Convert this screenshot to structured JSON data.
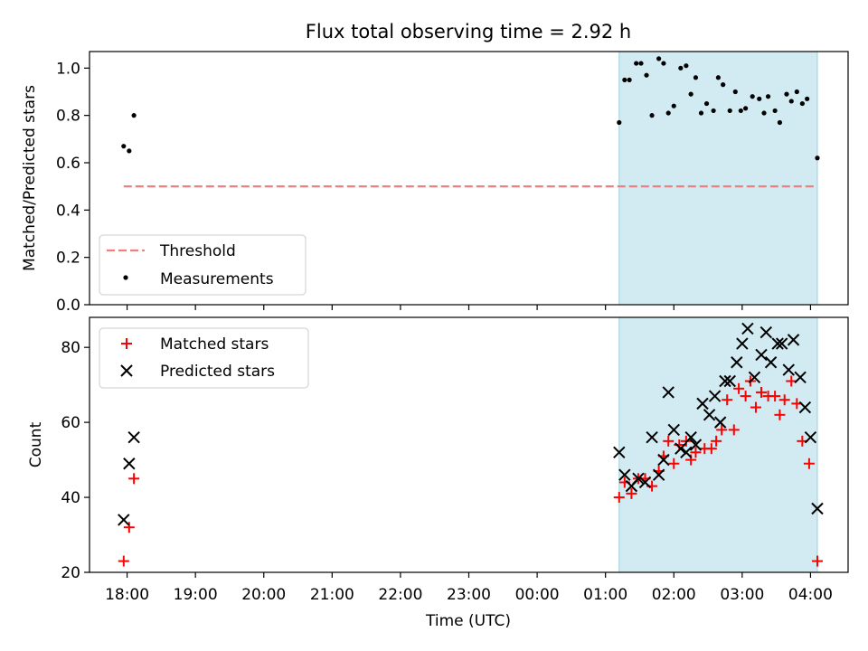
{
  "title": "Flux total observing time = 2.92 h",
  "xlabel": "Time (UTC)",
  "xtick_labels": [
    "18:00",
    "19:00",
    "20:00",
    "21:00",
    "22:00",
    "23:00",
    "00:00",
    "01:00",
    "02:00",
    "03:00",
    "04:00"
  ],
  "colors": {
    "threshold": "#f08080",
    "measurements": "#000000",
    "matched": "#ff0000",
    "predicted": "#000000",
    "shade": "#add8e6"
  },
  "chart_data": [
    {
      "type": "scatter",
      "ylabel": "Matched/Predicted stars",
      "ylim": [
        0,
        1.07
      ],
      "yticks": [
        "0.0",
        "0.2",
        "0.4",
        "0.6",
        "0.8",
        "1.0"
      ],
      "legend_position": "lower-left",
      "shaded_span": {
        "x": [
          7.2,
          10.1
        ],
        "color": "lightblue"
      },
      "threshold": {
        "name": "Threshold",
        "value": 0.5,
        "x": [
          -0.05,
          10.05
        ],
        "style": "dashed"
      },
      "series": [
        {
          "name": "Measurements",
          "points": [
            [
              -0.05,
              0.67
            ],
            [
              0.03,
              0.65
            ],
            [
              0.1,
              0.8
            ],
            [
              7.2,
              0.77
            ],
            [
              7.28,
              0.95
            ],
            [
              7.35,
              0.95
            ],
            [
              7.45,
              1.02
            ],
            [
              7.52,
              1.02
            ],
            [
              7.6,
              0.97
            ],
            [
              7.68,
              0.8
            ],
            [
              7.78,
              1.04
            ],
            [
              7.85,
              1.02
            ],
            [
              7.92,
              0.81
            ],
            [
              8.0,
              0.84
            ],
            [
              8.1,
              1.0
            ],
            [
              8.18,
              1.01
            ],
            [
              8.25,
              0.89
            ],
            [
              8.32,
              0.96
            ],
            [
              8.4,
              0.81
            ],
            [
              8.48,
              0.85
            ],
            [
              8.58,
              0.82
            ],
            [
              8.65,
              0.96
            ],
            [
              8.72,
              0.93
            ],
            [
              8.82,
              0.82
            ],
            [
              8.9,
              0.9
            ],
            [
              8.98,
              0.82
            ],
            [
              9.05,
              0.83
            ],
            [
              9.15,
              0.88
            ],
            [
              9.25,
              0.87
            ],
            [
              9.32,
              0.81
            ],
            [
              9.38,
              0.88
            ],
            [
              9.48,
              0.82
            ],
            [
              9.55,
              0.77
            ],
            [
              9.65,
              0.89
            ],
            [
              9.72,
              0.86
            ],
            [
              9.8,
              0.9
            ],
            [
              9.88,
              0.85
            ],
            [
              9.95,
              0.87
            ],
            [
              10.1,
              0.62
            ]
          ]
        }
      ]
    },
    {
      "type": "scatter",
      "ylabel": "Count",
      "ylim": [
        20,
        88
      ],
      "yticks": [
        "20",
        "40",
        "60",
        "80"
      ],
      "legend_position": "top-left",
      "shaded_span": {
        "x": [
          7.2,
          10.1
        ],
        "color": "lightblue"
      },
      "series": [
        {
          "name": "Matched stars",
          "marker": "plus",
          "points": [
            [
              -0.05,
              23
            ],
            [
              0.03,
              32
            ],
            [
              0.1,
              45
            ],
            [
              7.2,
              40
            ],
            [
              7.28,
              44
            ],
            [
              7.38,
              41
            ],
            [
              7.48,
              45
            ],
            [
              7.58,
              45
            ],
            [
              7.68,
              43
            ],
            [
              7.78,
              47
            ],
            [
              7.85,
              51
            ],
            [
              7.92,
              55
            ],
            [
              8.0,
              49
            ],
            [
              8.08,
              54
            ],
            [
              8.18,
              55
            ],
            [
              8.25,
              50
            ],
            [
              8.32,
              52
            ],
            [
              8.45,
              53
            ],
            [
              8.55,
              53
            ],
            [
              8.62,
              55
            ],
            [
              8.7,
              58
            ],
            [
              8.78,
              66
            ],
            [
              8.88,
              58
            ],
            [
              8.95,
              69
            ],
            [
              9.05,
              67
            ],
            [
              9.12,
              71
            ],
            [
              9.2,
              64
            ],
            [
              9.28,
              68
            ],
            [
              9.38,
              67
            ],
            [
              9.48,
              67
            ],
            [
              9.55,
              62
            ],
            [
              9.62,
              66
            ],
            [
              9.72,
              71
            ],
            [
              9.8,
              65
            ],
            [
              9.88,
              55
            ],
            [
              9.98,
              49
            ],
            [
              10.1,
              23
            ]
          ]
        },
        {
          "name": "Predicted stars",
          "marker": "x",
          "points": [
            [
              -0.05,
              34
            ],
            [
              0.03,
              49
            ],
            [
              0.1,
              56
            ],
            [
              7.2,
              52
            ],
            [
              7.28,
              46
            ],
            [
              7.38,
              43
            ],
            [
              7.48,
              45
            ],
            [
              7.58,
              44
            ],
            [
              7.68,
              56
            ],
            [
              7.78,
              46
            ],
            [
              7.85,
              50
            ],
            [
              7.92,
              68
            ],
            [
              8.0,
              58
            ],
            [
              8.1,
              53
            ],
            [
              8.18,
              52
            ],
            [
              8.25,
              56
            ],
            [
              8.32,
              54
            ],
            [
              8.42,
              65
            ],
            [
              8.52,
              62
            ],
            [
              8.6,
              67
            ],
            [
              8.68,
              60
            ],
            [
              8.75,
              71
            ],
            [
              8.82,
              71
            ],
            [
              8.92,
              76
            ],
            [
              9.0,
              81
            ],
            [
              9.08,
              85
            ],
            [
              9.18,
              72
            ],
            [
              9.28,
              78
            ],
            [
              9.35,
              84
            ],
            [
              9.42,
              76
            ],
            [
              9.52,
              81
            ],
            [
              9.58,
              81
            ],
            [
              9.68,
              74
            ],
            [
              9.75,
              82
            ],
            [
              9.85,
              72
            ],
            [
              9.92,
              64
            ],
            [
              10.0,
              56
            ],
            [
              10.1,
              37
            ]
          ]
        }
      ]
    }
  ]
}
